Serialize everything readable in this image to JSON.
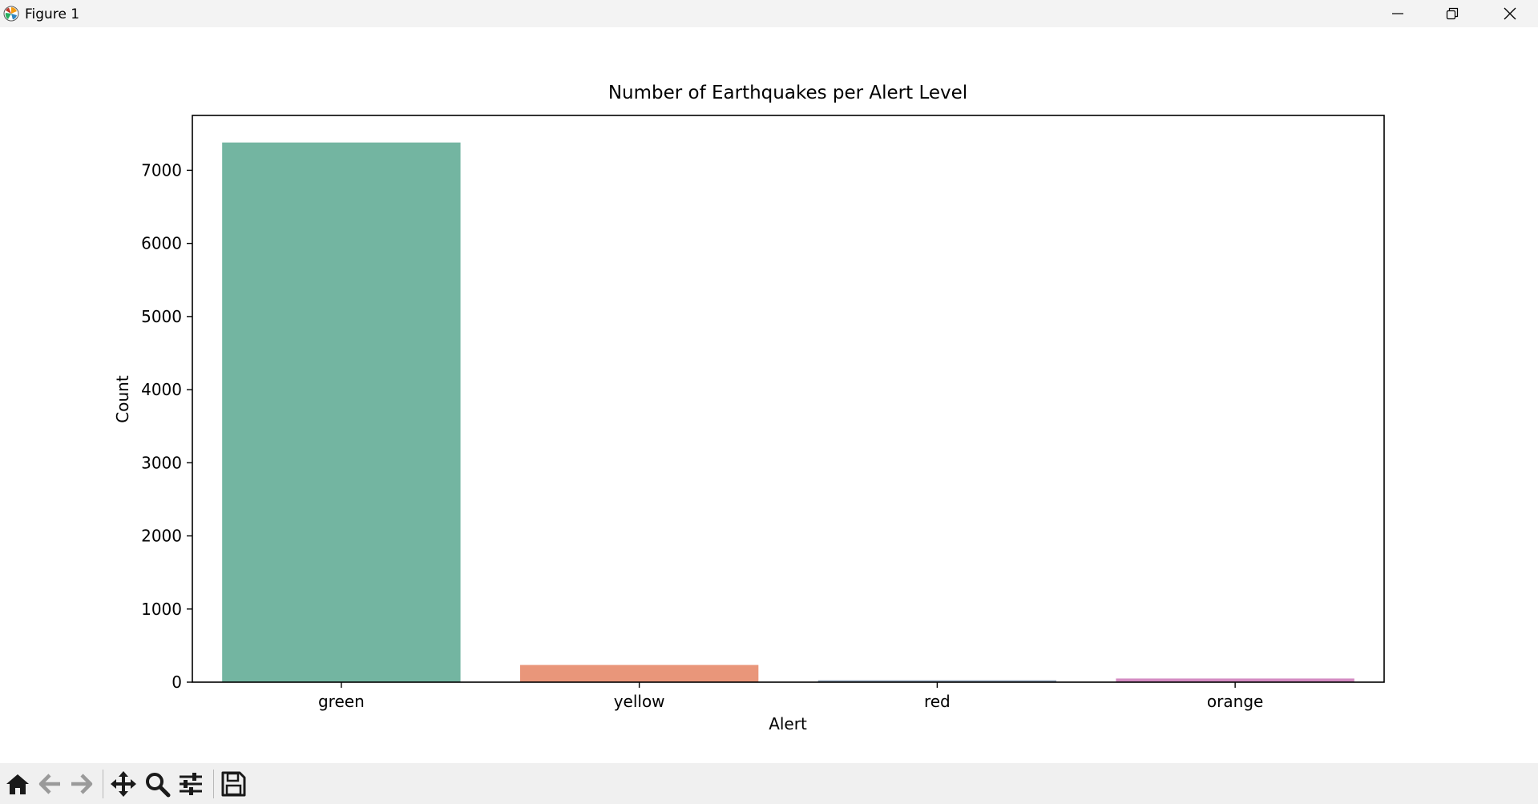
{
  "window": {
    "title": "Figure 1",
    "controls": [
      "minimize",
      "restore",
      "close"
    ]
  },
  "toolbar": {
    "tools": [
      {
        "name": "home",
        "icon": "home-icon"
      },
      {
        "name": "back",
        "icon": "arrow-left-icon"
      },
      {
        "name": "forward",
        "icon": "arrow-right-icon"
      },
      {
        "name": "pan",
        "icon": "move-icon"
      },
      {
        "name": "zoom",
        "icon": "magnifier-icon"
      },
      {
        "name": "configure-subplots",
        "icon": "sliders-icon"
      },
      {
        "name": "save",
        "icon": "floppy-disk-icon"
      }
    ]
  },
  "chart_data": {
    "type": "bar",
    "title": "Number of Earthquakes per Alert Level",
    "xlabel": "Alert",
    "ylabel": "Count",
    "categories": [
      "green",
      "yellow",
      "red",
      "orange"
    ],
    "values": [
      7380,
      235,
      25,
      50
    ],
    "colors": [
      "#73b5a1",
      "#e9967a",
      "#8c9fb5",
      "#d48cc3"
    ],
    "ylim": [
      0,
      7750
    ],
    "yticks": [
      0,
      1000,
      2000,
      3000,
      4000,
      5000,
      6000,
      7000
    ],
    "grid": false,
    "legend": "none"
  }
}
